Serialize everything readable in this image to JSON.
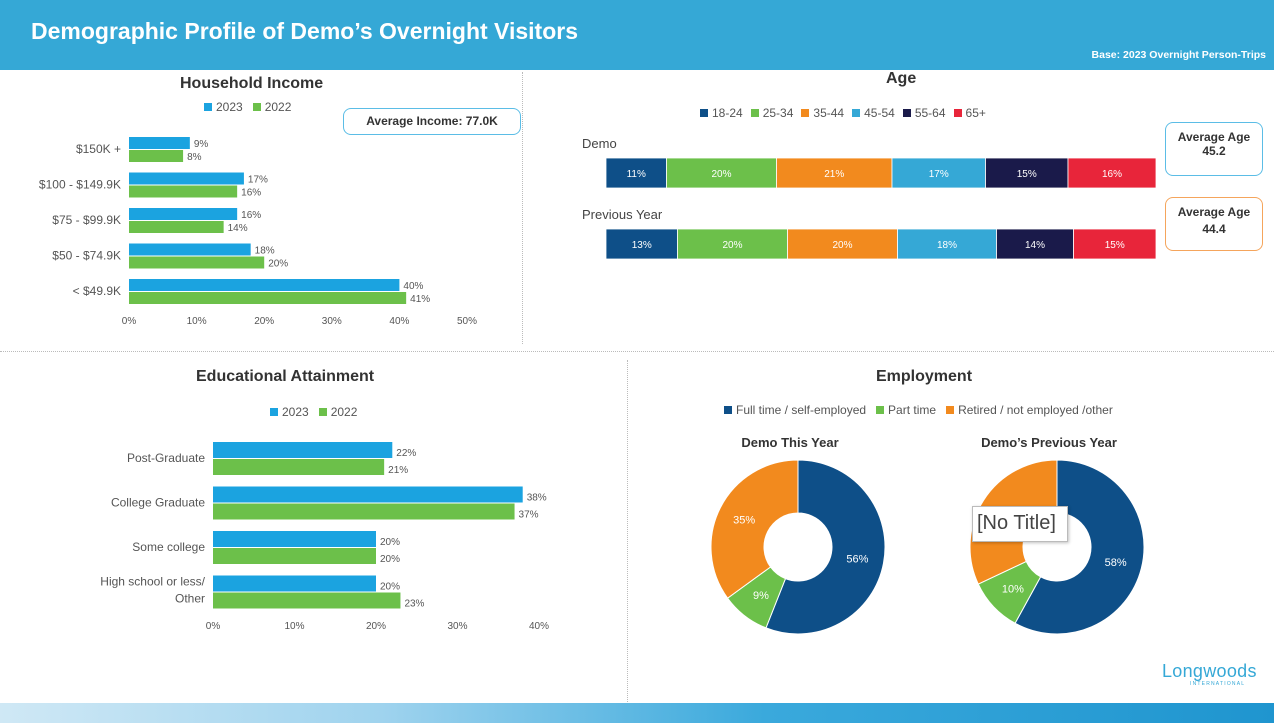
{
  "header": {
    "title": "Demographic Profile of Demo’s Overnight Visitors",
    "base": "Base: 2023 Overnight  Person-Trips"
  },
  "colors": {
    "series_2023": "#1ba3e0",
    "series_2022": "#6cc04a",
    "age": [
      "#0e4f88",
      "#6cc04a",
      "#f28a1e",
      "#35a8d6",
      "#1a1a4a",
      "#e8253a"
    ],
    "employment": [
      "#0e4f88",
      "#6cc04a",
      "#f28a1e"
    ]
  },
  "income": {
    "title": "Household Income",
    "callout": "Average Income: 77.0K"
  },
  "age": {
    "title": "Age",
    "callout_demo_label": "Average Age",
    "callout_demo_value": "45.2",
    "callout_prev_label": "Average Age",
    "callout_prev_value": "44.4"
  },
  "education": {
    "title": "Educational Attainment"
  },
  "employment": {
    "title": "Employment"
  },
  "tooltip": "[No Title]",
  "logo": {
    "name": "Longwoods",
    "sub": "INTERNATIONAL"
  },
  "chart_data": [
    {
      "id": "income",
      "type": "bar",
      "orientation": "horizontal",
      "title": "Household Income",
      "categories": [
        "$150K +",
        "$100 - $149.9K",
        "$75 - $99.9K",
        "$50 - $74.9K",
        "< $49.9K"
      ],
      "series": [
        {
          "name": "2023",
          "values": [
            9,
            17,
            16,
            18,
            40
          ]
        },
        {
          "name": "2022",
          "values": [
            8,
            16,
            14,
            20,
            41
          ]
        }
      ],
      "xlim": [
        0,
        50
      ],
      "ticks": [
        "0%",
        "10%",
        "20%",
        "30%",
        "40%",
        "50%"
      ],
      "legend": "top"
    },
    {
      "id": "age",
      "type": "bar",
      "orientation": "horizontal",
      "stacked": true,
      "title": "Age",
      "categories": [
        "Demo",
        "Previous Year"
      ],
      "series": [
        {
          "name": "18-24",
          "values": [
            11,
            13
          ]
        },
        {
          "name": "25-34",
          "values": [
            20,
            20
          ]
        },
        {
          "name": "35-44",
          "values": [
            21,
            20
          ]
        },
        {
          "name": "45-54",
          "values": [
            17,
            18
          ]
        },
        {
          "name": "55-64",
          "values": [
            15,
            14
          ]
        },
        {
          "name": "65+",
          "values": [
            16,
            15
          ]
        }
      ],
      "legend": "top"
    },
    {
      "id": "education",
      "type": "bar",
      "orientation": "horizontal",
      "title": "Educational Attainment",
      "categories": [
        "Post-Graduate",
        "College Graduate",
        "Some college",
        "High school or less/ Other"
      ],
      "series": [
        {
          "name": "2023",
          "values": [
            22,
            38,
            20,
            20
          ]
        },
        {
          "name": "2022",
          "values": [
            21,
            37,
            20,
            23
          ]
        }
      ],
      "xlim": [
        0,
        40
      ],
      "ticks": [
        "0%",
        "10%",
        "20%",
        "30%",
        "40%"
      ],
      "legend": "top"
    },
    {
      "id": "employment",
      "type": "pie",
      "donut": true,
      "title": "Employment",
      "categories": [
        "Full time / self-employed",
        "Part time",
        "Retired / not employed /other"
      ],
      "charts": [
        {
          "title": "Demo This Year",
          "values": [
            56,
            9,
            35
          ]
        },
        {
          "title": "Demo’s Previous Year",
          "values": [
            58,
            10,
            32
          ],
          "labels": [
            "58%",
            "10%",
            ""
          ]
        }
      ],
      "legend": "top"
    }
  ]
}
